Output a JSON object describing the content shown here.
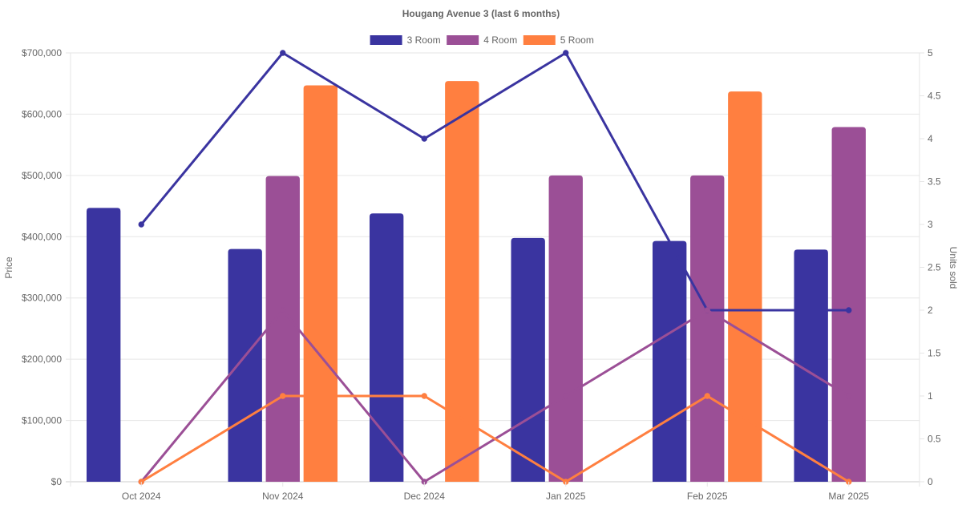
{
  "chart_data": {
    "type": "bar",
    "title": "Hougang Avenue 3 (last 6 months)",
    "categories": [
      "Oct 2024",
      "Nov 2024",
      "Dec 2024",
      "Jan 2025",
      "Feb 2025",
      "Mar 2025"
    ],
    "ylabel": "Price",
    "y2label": "Units sold",
    "ylim": [
      0,
      700000
    ],
    "y2lim": [
      0,
      5
    ],
    "y_ticks": [
      "$0",
      "$100,000",
      "$200,000",
      "$300,000",
      "$400,000",
      "$500,000",
      "$600,000",
      "$700,000"
    ],
    "y2_ticks": [
      "0",
      "0.5",
      "1",
      "1.5",
      "2",
      "2.5",
      "3",
      "3.5",
      "4",
      "4.5",
      "5"
    ],
    "legend_position": "top",
    "grid": true,
    "series": [
      {
        "name": "3 Room",
        "color": "#3a34a0",
        "price": [
          447000,
          380000,
          438000,
          398000,
          393000,
          379000
        ],
        "units": [
          3,
          5,
          4,
          5,
          2,
          2
        ]
      },
      {
        "name": "4 Room",
        "color": "#9b4f96",
        "price": [
          null,
          499000,
          null,
          500000,
          500000,
          579000
        ],
        "units": [
          0,
          2,
          0,
          1,
          2,
          1
        ]
      },
      {
        "name": "5 Room",
        "color": "#ff7f40",
        "price": [
          null,
          647000,
          654000,
          null,
          637000,
          null
        ],
        "units": [
          0,
          1,
          1,
          0,
          1,
          0
        ]
      }
    ]
  }
}
